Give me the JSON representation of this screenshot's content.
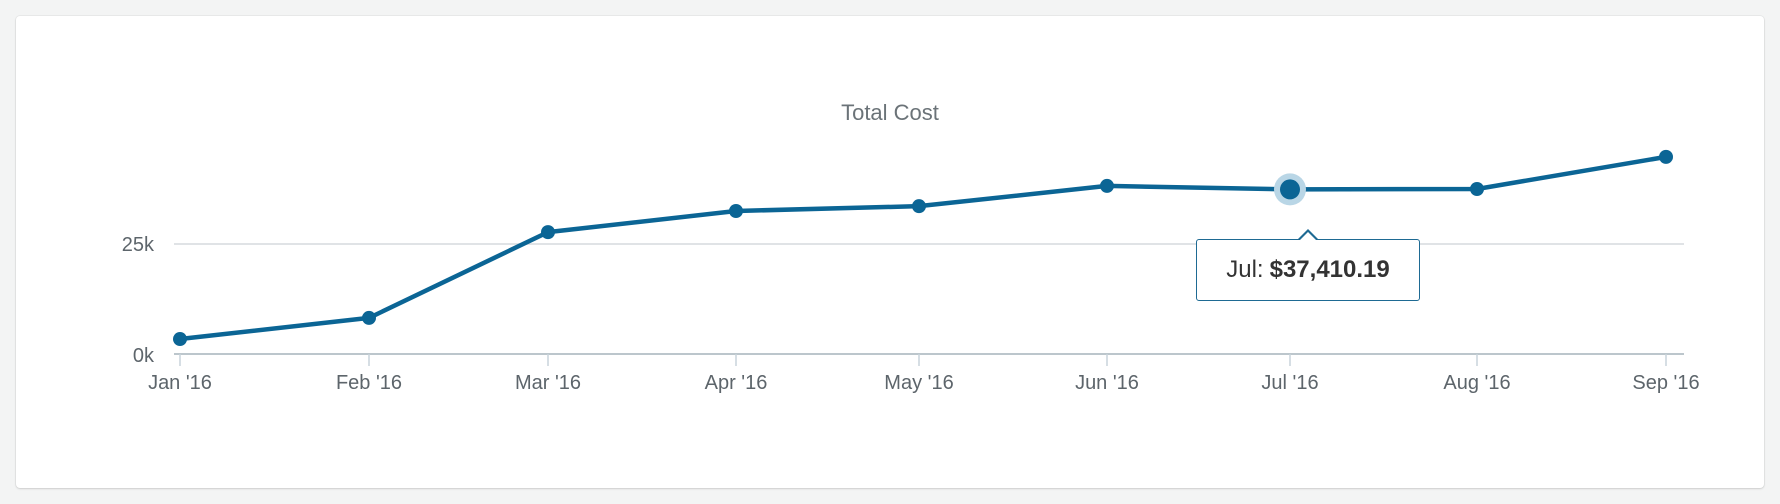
{
  "chart_data": {
    "type": "line",
    "title": "Total Cost",
    "xlabel": "",
    "ylabel": "",
    "categories": [
      "Jan '16",
      "Feb '16",
      "Mar '16",
      "Apr '16",
      "May '16",
      "Jun '16",
      "Jul '16",
      "Aug '16",
      "Sep '16"
    ],
    "series": [
      {
        "name": "Total Cost",
        "color": "#0b6595",
        "values": [
          3400,
          8200,
          27700,
          32500,
          33600,
          38200,
          37410.19,
          37500,
          44800
        ]
      }
    ],
    "yticks": [
      {
        "value": 0,
        "label": "0k"
      },
      {
        "value": 25000,
        "label": "25k"
      }
    ],
    "ylim": [
      0,
      50000
    ],
    "grid": true,
    "legend": "none",
    "highlighted_point": {
      "index": 6,
      "label": "Jul:",
      "value": "$37,410.19"
    }
  },
  "tooltip": {
    "label": "Jul:",
    "value": "$37,410.19"
  },
  "colors": {
    "line": "#0b6595",
    "halo": "#b9d6e6",
    "grid": "#d5dadd",
    "axis": "#bcc6cc"
  }
}
